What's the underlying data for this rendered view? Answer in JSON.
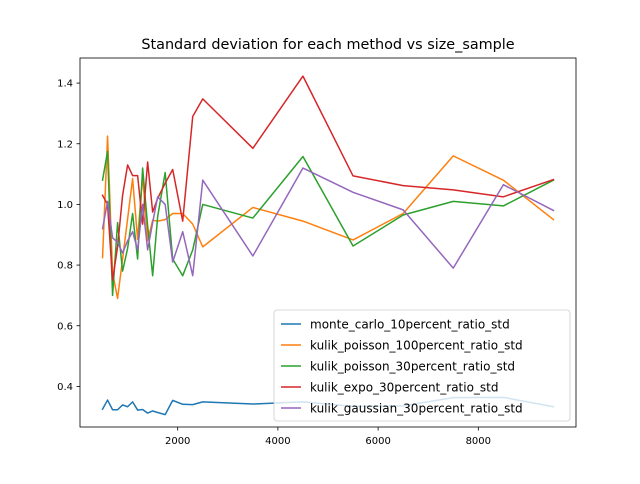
{
  "chart_data": {
    "type": "line",
    "title": "Standard deviation for each method vs size_sample",
    "xlabel": "",
    "ylabel": "",
    "xlim": [
      50,
      9950
    ],
    "ylim": [
      0.2662,
      1.4827
    ],
    "xticks": [
      2000,
      4000,
      6000,
      8000
    ],
    "xtick_labels": [
      "2000",
      "4000",
      "6000",
      "8000"
    ],
    "yticks": [
      0.4,
      0.6,
      0.8,
      1.0,
      1.2,
      1.4
    ],
    "ytick_labels": [
      "0.4",
      "0.6",
      "0.8",
      "1.0",
      "1.2",
      "1.4"
    ],
    "grid": false,
    "legend_position": "lower-right",
    "series": [
      {
        "name": "monte_carlo_10percent_ratio_std",
        "color": "#1f77b4",
        "x": [
          500,
          600,
          700,
          800,
          900,
          1000,
          1100,
          1200,
          1300,
          1400,
          1500,
          1600,
          1750,
          1900,
          2100,
          2300,
          2500,
          3500,
          4500,
          5500,
          6500,
          7500,
          8500,
          9500
        ],
        "y": [
          0.325,
          0.355,
          0.323,
          0.323,
          0.339,
          0.333,
          0.349,
          0.322,
          0.324,
          0.312,
          0.319,
          0.314,
          0.307,
          0.354,
          0.341,
          0.34,
          0.349,
          0.342,
          0.349,
          0.334,
          0.336,
          0.363,
          0.364,
          0.333
        ]
      },
      {
        "name": "kulik_poisson_100percent_ratio_std",
        "color": "#ff7f0e",
        "x": [
          500,
          600,
          700,
          800,
          900,
          1000,
          1100,
          1200,
          1300,
          1400,
          1500,
          1600,
          1750,
          1900,
          2100,
          2300,
          2500,
          3500,
          4500,
          5500,
          6500,
          7500,
          8500,
          9500
        ],
        "y": [
          0.825,
          1.225,
          0.775,
          0.69,
          0.82,
          0.952,
          1.085,
          0.885,
          1.095,
          0.88,
          0.948,
          0.945,
          0.95,
          0.97,
          0.97,
          0.935,
          0.86,
          0.99,
          0.945,
          0.883,
          0.97,
          1.16,
          1.08,
          0.95
        ]
      },
      {
        "name": "kulik_poisson_30percent_ratio_std",
        "color": "#2ca02c",
        "x": [
          500,
          600,
          700,
          800,
          900,
          1000,
          1100,
          1200,
          1300,
          1400,
          1500,
          1600,
          1750,
          1900,
          2100,
          2300,
          2500,
          3500,
          4500,
          5500,
          6500,
          7500,
          8500,
          9500
        ],
        "y": [
          1.08,
          1.175,
          0.7,
          0.94,
          0.78,
          0.855,
          0.97,
          0.82,
          1.12,
          0.93,
          0.765,
          0.96,
          1.105,
          0.82,
          0.765,
          0.85,
          1.0,
          0.955,
          1.158,
          0.863,
          0.965,
          1.01,
          0.995,
          1.08
        ]
      },
      {
        "name": "kulik_expo_30percent_ratio_std",
        "color": "#d62728",
        "x": [
          500,
          600,
          700,
          800,
          900,
          1000,
          1100,
          1200,
          1300,
          1400,
          1500,
          1600,
          1750,
          1900,
          2100,
          2300,
          2500,
          3500,
          4500,
          5500,
          6500,
          7500,
          8500,
          9500
        ],
        "y": [
          1.03,
          1.0,
          0.75,
          0.86,
          1.03,
          1.13,
          1.095,
          1.095,
          0.935,
          1.14,
          0.975,
          1.02,
          1.07,
          1.115,
          0.945,
          1.29,
          1.348,
          1.185,
          1.423,
          1.094,
          1.062,
          1.048,
          1.025,
          1.082
        ]
      },
      {
        "name": "kulik_gaussian_30percent_ratio_std",
        "color": "#9467bd",
        "x": [
          500,
          600,
          700,
          800,
          900,
          1000,
          1100,
          1200,
          1300,
          1400,
          1500,
          1600,
          1750,
          1900,
          2100,
          2300,
          2500,
          3500,
          4500,
          5500,
          6500,
          7500,
          8500,
          9500
        ],
        "y": [
          0.92,
          1.01,
          0.89,
          0.875,
          0.84,
          0.88,
          0.91,
          0.85,
          1.0,
          0.85,
          0.94,
          1.025,
          1.0,
          0.81,
          0.91,
          0.765,
          1.08,
          0.83,
          1.12,
          1.04,
          0.982,
          0.79,
          1.065,
          0.98
        ]
      }
    ]
  }
}
